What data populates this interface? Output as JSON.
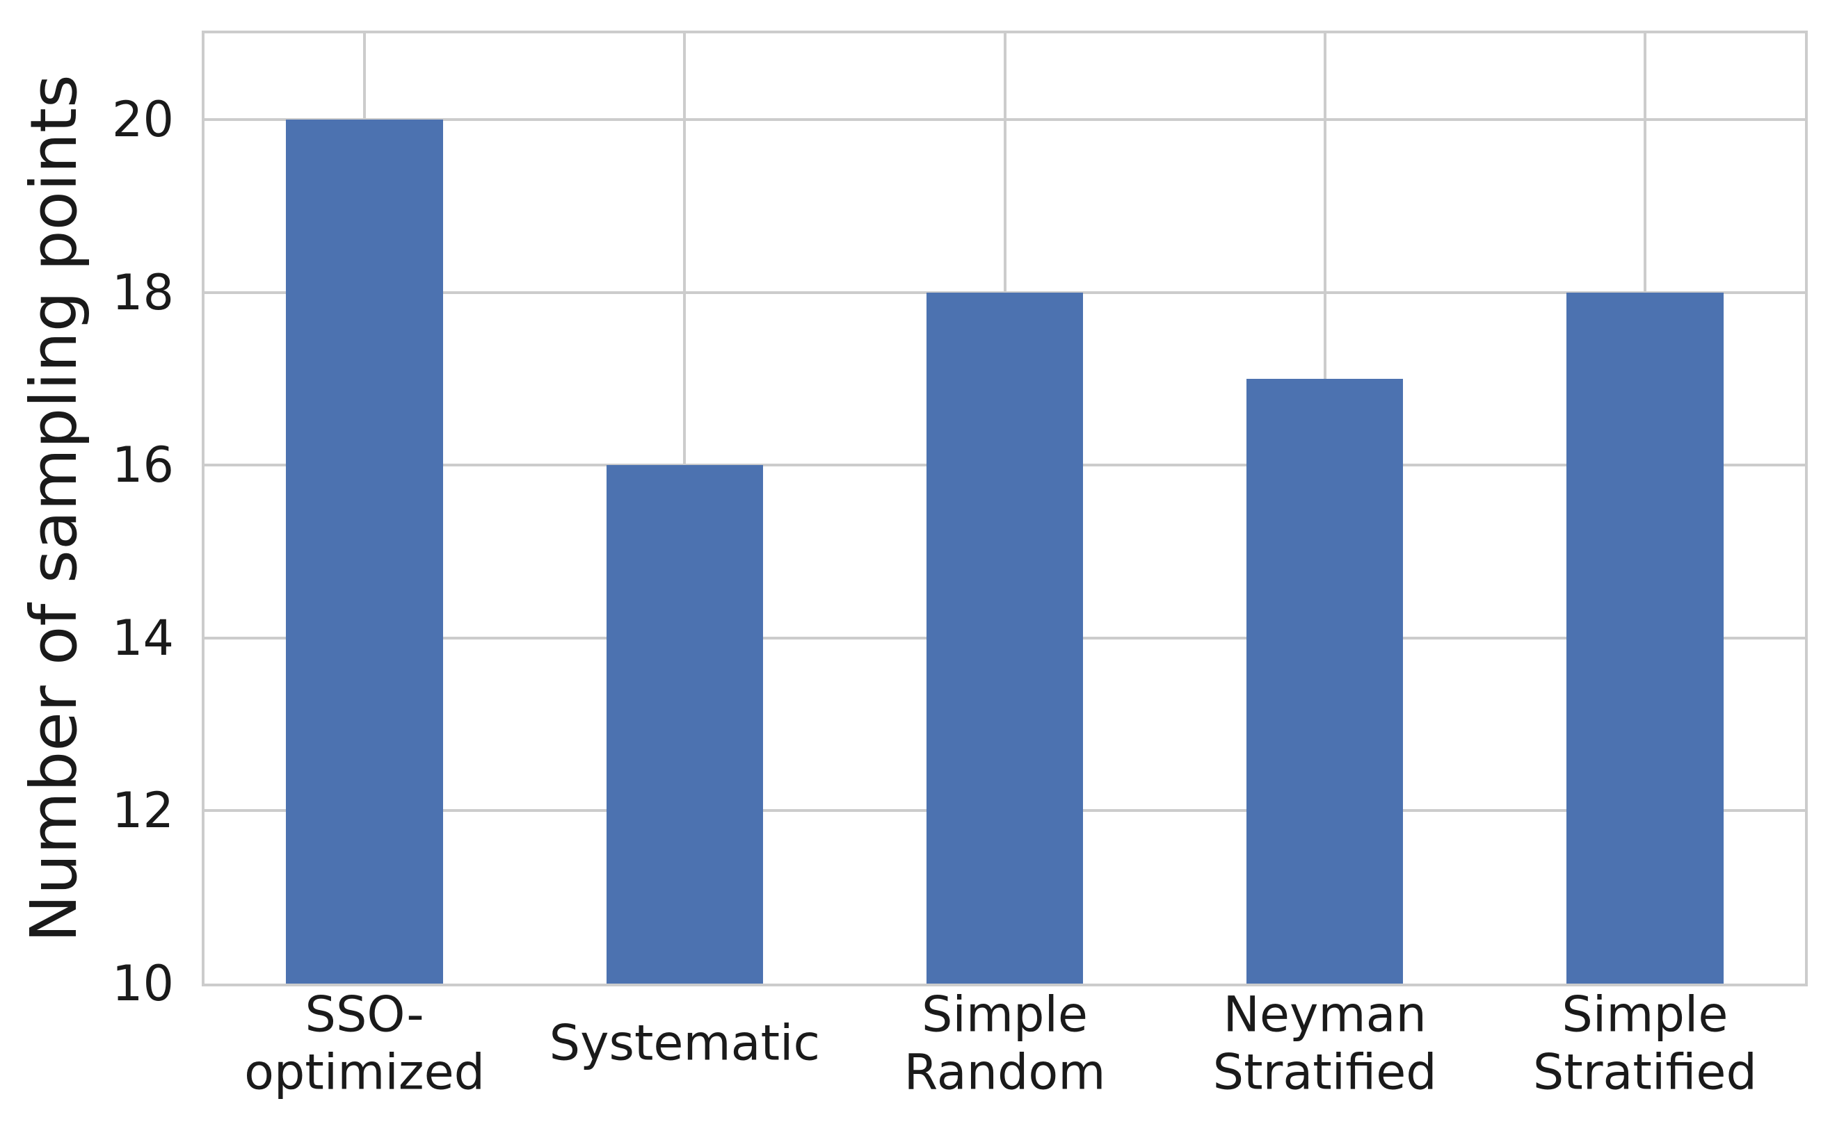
{
  "chart_data": {
    "type": "bar",
    "title": "",
    "xlabel": "",
    "ylabel": "Number of sampling points",
    "categories": [
      "SSO-\noptimized",
      "Systematic",
      "Simple\nRandom",
      "Neyman\nStratified",
      "Simple\nStratified"
    ],
    "values": [
      20,
      16,
      18,
      17,
      18
    ],
    "yticks": [
      10,
      12,
      14,
      16,
      18,
      20
    ],
    "ylim": [
      10,
      21
    ],
    "grid": true,
    "legend": false,
    "bar_width_fraction": 0.49,
    "bar_color": "#4C72B0",
    "grid_color": "#cccccc",
    "text_color": "#1a1a1a",
    "background_color": "#ffffff"
  }
}
